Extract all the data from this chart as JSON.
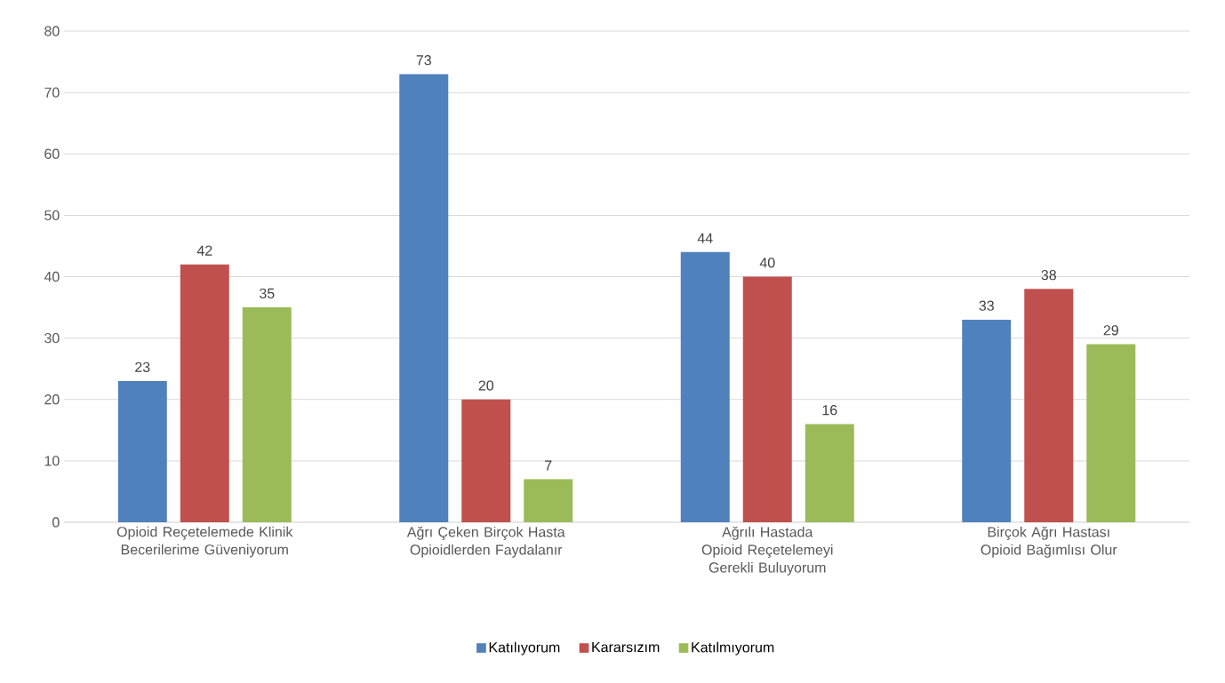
{
  "chart_data": {
    "type": "bar",
    "categories": [
      "Opioid Reçetelemede Klinik Becerilerime Güveniyorum",
      "Ağrı Çeken Birçok Hasta Opioidlerden Faydalanır",
      "Ağrılı Hastada Opioid Reçetelemeyi Gerekli Buluyorum",
      "Birçok Ağrı Hastası Opioid Bağımlısı Olur"
    ],
    "series": [
      {
        "name": "Katılıyorum",
        "color": "#4f81bd",
        "values": [
          23,
          73,
          44,
          33
        ]
      },
      {
        "name": "Kararsızım",
        "color": "#c0504d",
        "values": [
          42,
          20,
          40,
          38
        ]
      },
      {
        "name": "Katılmıyorum",
        "color": "#9bbb59",
        "values": [
          35,
          7,
          16,
          29
        ]
      }
    ],
    "ylim": [
      0,
      80
    ],
    "yticks": [
      0,
      10,
      20,
      30,
      40,
      50,
      60,
      70,
      80
    ],
    "grid": "y",
    "legend": "bottom",
    "data_labels": true
  }
}
